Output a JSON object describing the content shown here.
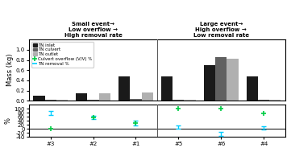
{
  "chart_data": [
    {
      "type": "bar",
      "categories": [
        "#3",
        "#2",
        "#1",
        "#5",
        "#6",
        "#4"
      ],
      "series": [
        {
          "name": "TN inlet",
          "color": "#1a1a1a",
          "values": [
            0.1,
            0.14,
            0.48,
            0.48,
            0.7,
            0.48
          ]
        },
        {
          "name": "TN culvert",
          "color": "#606060",
          "values": [
            0.02,
            0.02,
            0.03,
            0.02,
            0.85,
            0.02
          ]
        },
        {
          "name": "TN outlet",
          "color": "#b0b0b0",
          "values": [
            0.02,
            0.14,
            0.16,
            0.02,
            0.82,
            0.02
          ]
        }
      ],
      "y_label": "Mass (kg)",
      "ylim": [
        0,
        1.2
      ],
      "yticks": [
        {
          "value": 0,
          "label": "0.0"
        },
        {
          "value": 0.2,
          "label": "0.2"
        },
        {
          "value": 0.4,
          "label": "0.4"
        },
        {
          "value": 0.6,
          "label": "0.6"
        },
        {
          "value": 0.8,
          "label": "0.8"
        },
        {
          "value": 1.0,
          "label": "1.0"
        }
      ],
      "tick_labels": "y",
      "legend": "upper left",
      "annotations": [
        "Small event→\nLow overflow →\nHigh removal rate",
        "Large event→\nHigh overflow →\nLow removal rate"
      ]
    },
    {
      "type": "scatter",
      "categories": [
        "#3",
        "#2",
        "#1",
        "#5",
        "#6",
        "#4"
      ],
      "series": [
        {
          "name": "Culvert overflow (V/V) %",
          "type": "scatter",
          "marker": "+",
          "color": "#00cc44",
          "values": [
            2,
            55,
            28,
            100,
            100,
            75
          ]
        },
        {
          "name": "TN removal %",
          "type": "errorbar",
          "marker": "_",
          "color": "#00ccff",
          "values": [
            78,
            58,
            30,
            10,
            -25,
            5
          ],
          "error_low": [
            10,
            8,
            12,
            8,
            10,
            8
          ],
          "error_high": [
            10,
            8,
            12,
            8,
            10,
            8
          ]
        }
      ],
      "y_label": "%",
      "ylim": [
        -40,
        120
      ],
      "yticks": [
        -40,
        -20,
        0,
        20,
        40,
        60,
        80,
        100
      ]
    }
  ]
}
